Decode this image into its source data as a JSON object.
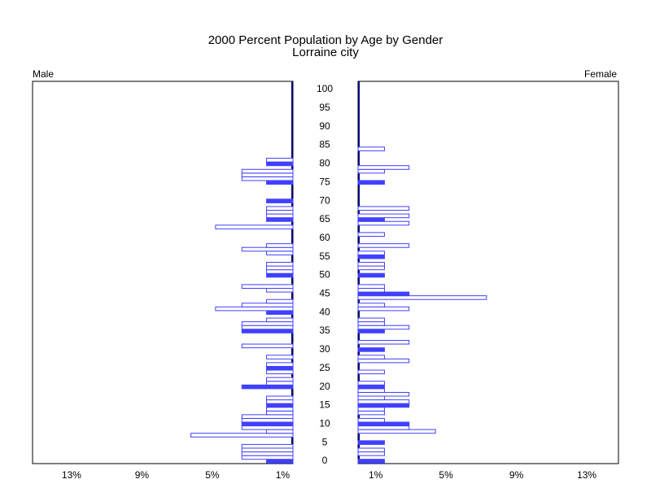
{
  "chart_data": {
    "type": "pyramid",
    "title": "2000 Percent Population by Age by Gender",
    "subtitle": "Lorraine city",
    "categories": [
      "0",
      null,
      null,
      null,
      null,
      "5",
      null,
      null,
      null,
      null,
      "10",
      null,
      null,
      null,
      null,
      "15",
      null,
      null,
      null,
      null,
      "20",
      null,
      null,
      null,
      null,
      "25",
      null,
      null,
      null,
      null,
      "30",
      null,
      null,
      null,
      null,
      "35",
      null,
      null,
      null,
      null,
      "40",
      null,
      null,
      null,
      null,
      "45",
      null,
      null,
      null,
      null,
      "50",
      null,
      null,
      null,
      null,
      "55",
      null,
      null,
      null,
      null,
      "60",
      null,
      null,
      null,
      null,
      "65",
      null,
      null,
      null,
      null,
      "70",
      null,
      null,
      null,
      null,
      "75",
      null,
      null,
      null,
      null,
      "80",
      null,
      null,
      null,
      null,
      "85",
      null,
      null,
      null,
      null,
      "90",
      null,
      null,
      null,
      null,
      "95",
      null,
      null,
      null,
      null,
      "100"
    ],
    "series": [
      {
        "name": "Male",
        "color": "#4040ff",
        "values": [
          1.5,
          2.9,
          2.9,
          2.9,
          2.9,
          0,
          0,
          5.8,
          1.5,
          2.9,
          2.9,
          2.9,
          2.9,
          1.5,
          1.5,
          1.5,
          1.5,
          1.5,
          0,
          0,
          2.9,
          1.5,
          1.5,
          0,
          1.5,
          1.5,
          1.5,
          0,
          1.5,
          0,
          0,
          2.9,
          0,
          0,
          0,
          2.9,
          2.9,
          2.9,
          1.5,
          0,
          1.5,
          4.4,
          2.9,
          1.5,
          0,
          0,
          1.5,
          2.9,
          0,
          0,
          1.5,
          1.5,
          1.5,
          1.5,
          0,
          0,
          1.5,
          2.9,
          1.5,
          0,
          0,
          0,
          0,
          4.4,
          0,
          1.5,
          1.5,
          1.5,
          1.5,
          0,
          1.5,
          0,
          0,
          0,
          0,
          1.5,
          2.9,
          2.9,
          2.9,
          0,
          1.5,
          1.5,
          0,
          0,
          0,
          0,
          0,
          0,
          0,
          0,
          0,
          0,
          0,
          0,
          0,
          0,
          0,
          0,
          0,
          0,
          0
        ]
      },
      {
        "name": "Female",
        "color": "#4040ff",
        "values": [
          1.5,
          0,
          1.5,
          1.5,
          0,
          1.5,
          0,
          0,
          4.4,
          2.9,
          2.9,
          1.5,
          0,
          1.5,
          1.5,
          2.9,
          2.9,
          1.5,
          2.9,
          1.5,
          1.5,
          1.5,
          0,
          0,
          1.5,
          0,
          0,
          2.9,
          1.5,
          0,
          1.5,
          0,
          2.9,
          0,
          0,
          1.5,
          2.9,
          1.5,
          1.5,
          0,
          0,
          2.9,
          1.5,
          0,
          7.3,
          2.9,
          1.5,
          1.5,
          0,
          0,
          1.5,
          0,
          1.5,
          1.5,
          0,
          1.5,
          1.5,
          0,
          2.9,
          0,
          0,
          1.5,
          0,
          0,
          2.9,
          1.5,
          2.9,
          0,
          2.9,
          0,
          0,
          0,
          0,
          0,
          0,
          1.5,
          0,
          0,
          1.5,
          2.9,
          0,
          0,
          0,
          0,
          1.5,
          0,
          0,
          0,
          0,
          0,
          0,
          0,
          0,
          0,
          0,
          0,
          0,
          0,
          0,
          0,
          0
        ]
      }
    ],
    "xlim": [
      0,
      14.8
    ],
    "xticks": [
      {
        "value": 13,
        "label": "13%"
      },
      {
        "value": 9,
        "label": "9%"
      },
      {
        "value": 5,
        "label": "5%"
      },
      {
        "value": 1,
        "label": "1%"
      }
    ]
  }
}
